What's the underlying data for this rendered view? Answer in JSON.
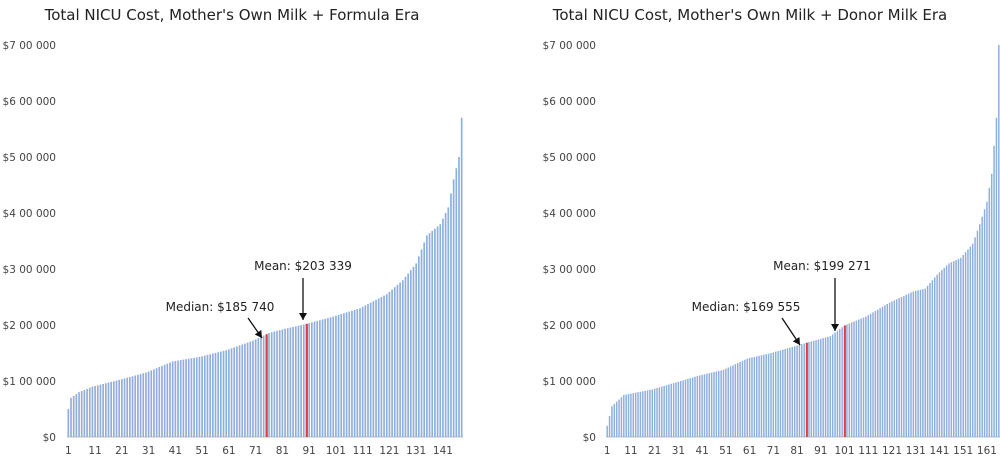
{
  "chart_data": [
    {
      "type": "bar",
      "title": "Total NICU Cost, Mother's Own Milk + Formula Era",
      "xlabel": "",
      "ylabel": "",
      "ylim": [
        0,
        700000
      ],
      "y_ticks": [
        "$0",
        "$1 00 000",
        "$2 00 000",
        "$3 00 000",
        "$4 00 000",
        "$5 00 000",
        "$6 00 000",
        "$7 00 000"
      ],
      "x_ticks": [
        "1",
        "11",
        "21",
        "31",
        "41",
        "51",
        "61",
        "71",
        "81",
        "91",
        "101",
        "111",
        "121",
        "131",
        "141"
      ],
      "n_bars": 148,
      "bar_color": "#8eaedb",
      "highlight_color": "#e03a3a",
      "highlight_indices": [
        75,
        90
      ],
      "curve_points": [
        [
          1,
          50000
        ],
        [
          2,
          70000
        ],
        [
          5,
          80000
        ],
        [
          10,
          90000
        ],
        [
          20,
          102000
        ],
        [
          30,
          115000
        ],
        [
          40,
          135000
        ],
        [
          50,
          143000
        ],
        [
          60,
          155000
        ],
        [
          70,
          172000
        ],
        [
          76,
          185740
        ],
        [
          81,
          192000
        ],
        [
          91,
          203339
        ],
        [
          100,
          215000
        ],
        [
          110,
          230000
        ],
        [
          120,
          255000
        ],
        [
          126,
          280000
        ],
        [
          131,
          310000
        ],
        [
          135,
          360000
        ],
        [
          140,
          380000
        ],
        [
          143,
          410000
        ],
        [
          145,
          460000
        ],
        [
          147,
          500000
        ],
        [
          148,
          570000
        ]
      ],
      "annotations": [
        {
          "label": "Mean: $203 339",
          "bar": 91
        },
        {
          "label": "Median: $185 740",
          "bar": 76
        }
      ]
    },
    {
      "type": "bar",
      "title": "Total NICU Cost, Mother's Own Milk + Donor Milk Era",
      "xlabel": "",
      "ylabel": "",
      "ylim": [
        0,
        700000
      ],
      "y_ticks": [
        "$0",
        "$1 00 000",
        "$2 00 000",
        "$3 00 000",
        "$4 00 000",
        "$5 00 000",
        "$6 00 000",
        "$7 00 000"
      ],
      "x_ticks": [
        "1",
        "11",
        "21",
        "31",
        "41",
        "51",
        "61",
        "71",
        "81",
        "91",
        "101",
        "111",
        "121",
        "131",
        "141",
        "151",
        "161"
      ],
      "n_bars": 166,
      "bar_color": "#8eaedb",
      "highlight_color": "#e03a3a",
      "highlight_indices": [
        85,
        101
      ],
      "curve_points": [
        [
          1,
          20000
        ],
        [
          3,
          55000
        ],
        [
          8,
          75000
        ],
        [
          20,
          85000
        ],
        [
          40,
          110000
        ],
        [
          50,
          120000
        ],
        [
          60,
          140000
        ],
        [
          70,
          150000
        ],
        [
          80,
          162000
        ],
        [
          86,
          169555
        ],
        [
          95,
          180000
        ],
        [
          101,
          199271
        ],
        [
          110,
          215000
        ],
        [
          120,
          240000
        ],
        [
          130,
          260000
        ],
        [
          135,
          265000
        ],
        [
          140,
          290000
        ],
        [
          145,
          310000
        ],
        [
          150,
          320000
        ],
        [
          155,
          345000
        ],
        [
          158,
          380000
        ],
        [
          161,
          420000
        ],
        [
          163,
          470000
        ],
        [
          165,
          570000
        ],
        [
          166,
          700000
        ]
      ],
      "annotations": [
        {
          "label": "Mean: $199 271",
          "bar": 101
        },
        {
          "label": "Median: $169 555",
          "bar": 86
        }
      ]
    }
  ]
}
